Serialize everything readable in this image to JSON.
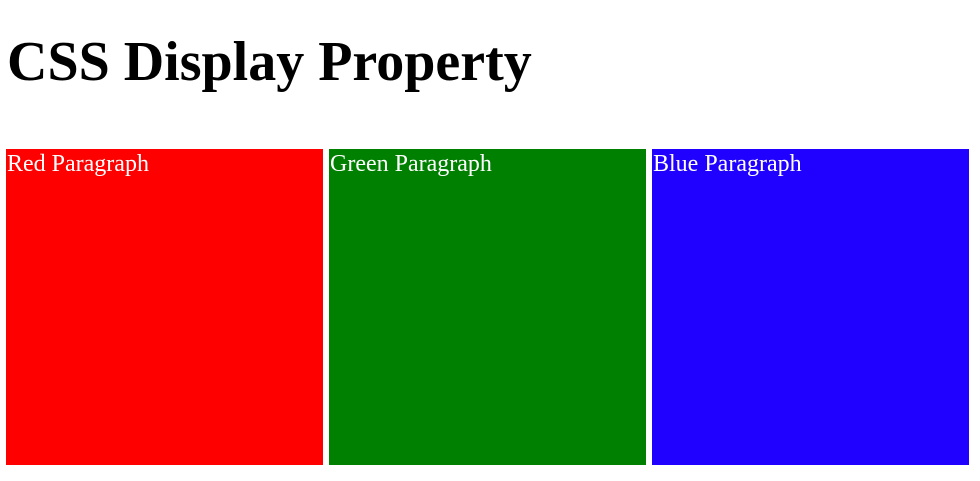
{
  "header": {
    "title": "CSS Display Property"
  },
  "paragraphs": [
    {
      "label": "Red Paragraph",
      "color": "#ff0000"
    },
    {
      "label": "Green Paragraph",
      "color": "#008000"
    },
    {
      "label": "Blue Paragraph",
      "color": "#2000ff"
    }
  ],
  "text_color": "#ffffff"
}
